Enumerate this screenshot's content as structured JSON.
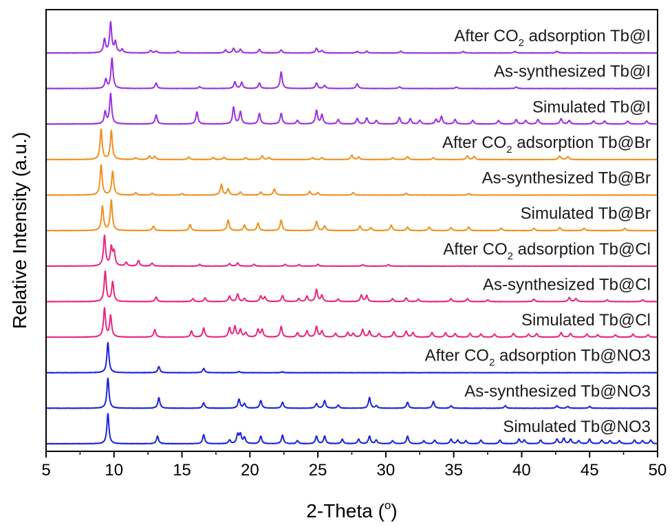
{
  "chart_data": {
    "type": "line",
    "xlabel": "2-Theta (",
    "xlabel_degree": "o",
    "xlabel_close": ")",
    "ylabel": "Relative Intensity (a.u.)",
    "xlim": [
      5,
      50
    ],
    "xticks": [
      5,
      10,
      15,
      20,
      25,
      30,
      35,
      40,
      45,
      50
    ],
    "xtick_labels": [
      "5",
      "10",
      "15",
      "20",
      "25",
      "30",
      "35",
      "40",
      "45",
      "50"
    ],
    "grid": false,
    "legend": "none",
    "series": [
      {
        "name": "After CO2 adsorption Tb@I",
        "label_pre": "After CO",
        "label_sub": "2",
        "label_post": " adsorption Tb@I",
        "color": "#9b2fe0",
        "peaks": [
          [
            9.3,
            0.45
          ],
          [
            9.75,
            1.0
          ],
          [
            10.1,
            0.35
          ],
          [
            10.6,
            0.12
          ],
          [
            12.7,
            0.08
          ],
          [
            13.1,
            0.06
          ],
          [
            14.7,
            0.06
          ],
          [
            18.2,
            0.1
          ],
          [
            18.8,
            0.15
          ],
          [
            19.3,
            0.12
          ],
          [
            20.7,
            0.12
          ],
          [
            22.3,
            0.1
          ],
          [
            24.9,
            0.15
          ],
          [
            25.3,
            0.08
          ],
          [
            27.9,
            0.05
          ],
          [
            28.6,
            0.06
          ],
          [
            31.1,
            0.06
          ],
          [
            35.7,
            0.05
          ],
          [
            39.5,
            0.05
          ],
          [
            42.6,
            0.06
          ]
        ]
      },
      {
        "name": "As-synthesized Tb@I",
        "label_pre": "As-synthesized Tb@I",
        "label_sub": "",
        "label_post": "",
        "color": "#9b2fe0",
        "peaks": [
          [
            9.4,
            0.3
          ],
          [
            9.85,
            1.0
          ],
          [
            13.1,
            0.18
          ],
          [
            16.3,
            0.06
          ],
          [
            18.9,
            0.22
          ],
          [
            19.4,
            0.2
          ],
          [
            20.7,
            0.18
          ],
          [
            22.3,
            0.55
          ],
          [
            24.9,
            0.18
          ],
          [
            25.5,
            0.1
          ],
          [
            27.9,
            0.15
          ],
          [
            31.0,
            0.06
          ],
          [
            35.2,
            0.05
          ],
          [
            39.6,
            0.05
          ]
        ]
      },
      {
        "name": "Simulated Tb@I",
        "label_pre": "Simulated Tb@I",
        "label_sub": "",
        "label_post": "",
        "color": "#9b2fe0",
        "peaks": [
          [
            9.35,
            0.4
          ],
          [
            9.75,
            1.0
          ],
          [
            13.1,
            0.3
          ],
          [
            16.1,
            0.4
          ],
          [
            18.8,
            0.55
          ],
          [
            19.3,
            0.4
          ],
          [
            20.7,
            0.35
          ],
          [
            22.3,
            0.35
          ],
          [
            23.5,
            0.12
          ],
          [
            24.9,
            0.45
          ],
          [
            25.3,
            0.3
          ],
          [
            26.5,
            0.15
          ],
          [
            27.9,
            0.18
          ],
          [
            28.6,
            0.2
          ],
          [
            29.3,
            0.12
          ],
          [
            31.0,
            0.22
          ],
          [
            31.8,
            0.18
          ],
          [
            32.5,
            0.12
          ],
          [
            33.7,
            0.15
          ],
          [
            34.1,
            0.25
          ],
          [
            35.1,
            0.15
          ],
          [
            36.4,
            0.12
          ],
          [
            38.3,
            0.12
          ],
          [
            39.6,
            0.15
          ],
          [
            40.3,
            0.12
          ],
          [
            41.2,
            0.15
          ],
          [
            42.9,
            0.18
          ],
          [
            43.5,
            0.12
          ],
          [
            45.3,
            0.1
          ],
          [
            46.1,
            0.1
          ],
          [
            47.8,
            0.1
          ],
          [
            49.2,
            0.1
          ]
        ]
      },
      {
        "name": "After CO2 adsorption Tb@Br",
        "label_pre": "After CO",
        "label_sub": "2",
        "label_post": " adsorption Tb@Br",
        "color": "#f0901e",
        "peaks": [
          [
            9.05,
            1.0
          ],
          [
            9.8,
            0.95
          ],
          [
            11.6,
            0.06
          ],
          [
            12.6,
            0.12
          ],
          [
            13.0,
            0.1
          ],
          [
            15.5,
            0.08
          ],
          [
            17.3,
            0.07
          ],
          [
            18.1,
            0.08
          ],
          [
            19.7,
            0.06
          ],
          [
            20.9,
            0.12
          ],
          [
            21.4,
            0.07
          ],
          [
            24.6,
            0.06
          ],
          [
            25.3,
            0.06
          ],
          [
            27.5,
            0.14
          ],
          [
            28.0,
            0.08
          ],
          [
            30.5,
            0.06
          ],
          [
            31.6,
            0.1
          ],
          [
            33.5,
            0.06
          ],
          [
            36.0,
            0.12
          ],
          [
            36.5,
            0.1
          ],
          [
            42.8,
            0.12
          ],
          [
            43.4,
            0.1
          ]
        ]
      },
      {
        "name": "As-synthesized Tb@Br",
        "label_pre": "As-synthesized Tb@Br",
        "label_sub": "",
        "label_post": "",
        "color": "#f0901e",
        "peaks": [
          [
            9.05,
            1.0
          ],
          [
            9.9,
            0.78
          ],
          [
            11.6,
            0.08
          ],
          [
            12.8,
            0.06
          ],
          [
            15.0,
            0.05
          ],
          [
            17.9,
            0.35
          ],
          [
            18.4,
            0.2
          ],
          [
            19.3,
            0.1
          ],
          [
            20.8,
            0.1
          ],
          [
            21.8,
            0.2
          ],
          [
            24.4,
            0.12
          ],
          [
            25.0,
            0.08
          ],
          [
            27.6,
            0.08
          ],
          [
            31.5,
            0.06
          ],
          [
            36.1,
            0.05
          ]
        ]
      },
      {
        "name": "Simulated Tb@Br",
        "label_pre": "Simulated Tb@Br",
        "label_sub": "",
        "label_post": "",
        "color": "#f0901e",
        "peaks": [
          [
            9.15,
            0.8
          ],
          [
            9.8,
            1.0
          ],
          [
            12.9,
            0.15
          ],
          [
            15.6,
            0.2
          ],
          [
            18.4,
            0.35
          ],
          [
            19.6,
            0.18
          ],
          [
            20.6,
            0.25
          ],
          [
            22.3,
            0.35
          ],
          [
            24.9,
            0.3
          ],
          [
            25.5,
            0.15
          ],
          [
            28.1,
            0.15
          ],
          [
            28.9,
            0.1
          ],
          [
            30.4,
            0.18
          ],
          [
            31.6,
            0.12
          ],
          [
            33.2,
            0.12
          ],
          [
            34.8,
            0.1
          ],
          [
            36.1,
            0.12
          ],
          [
            38.5,
            0.08
          ],
          [
            40.9,
            0.08
          ],
          [
            42.8,
            0.1
          ],
          [
            44.6,
            0.08
          ],
          [
            47.6,
            0.08
          ]
        ]
      },
      {
        "name": "After CO2 adsorption Tb@Cl",
        "label_pre": "After CO",
        "label_sub": "2",
        "label_post": " adsorption Tb@Cl",
        "color": "#e8267f",
        "peaks": [
          [
            9.3,
            1.0
          ],
          [
            9.8,
            0.6
          ],
          [
            10.0,
            0.45
          ],
          [
            10.9,
            0.12
          ],
          [
            11.8,
            0.18
          ],
          [
            12.8,
            0.1
          ],
          [
            16.3,
            0.06
          ],
          [
            18.5,
            0.08
          ],
          [
            19.1,
            0.1
          ],
          [
            20.3,
            0.06
          ],
          [
            22.6,
            0.06
          ],
          [
            23.6,
            0.05
          ],
          [
            25.0,
            0.06
          ],
          [
            28.3,
            0.05
          ],
          [
            30.2,
            0.05
          ]
        ]
      },
      {
        "name": "As-synthesized Tb@Cl",
        "label_pre": "As-synthesized Tb@Cl",
        "label_sub": "",
        "label_post": "",
        "color": "#e8267f",
        "peaks": [
          [
            9.35,
            1.0
          ],
          [
            9.9,
            0.65
          ],
          [
            13.1,
            0.15
          ],
          [
            15.8,
            0.1
          ],
          [
            16.7,
            0.12
          ],
          [
            18.5,
            0.18
          ],
          [
            19.1,
            0.25
          ],
          [
            19.6,
            0.1
          ],
          [
            20.8,
            0.18
          ],
          [
            21.1,
            0.15
          ],
          [
            22.4,
            0.2
          ],
          [
            23.6,
            0.1
          ],
          [
            24.2,
            0.18
          ],
          [
            24.9,
            0.4
          ],
          [
            25.3,
            0.2
          ],
          [
            26.5,
            0.08
          ],
          [
            28.2,
            0.22
          ],
          [
            28.6,
            0.2
          ],
          [
            30.5,
            0.1
          ],
          [
            31.5,
            0.12
          ],
          [
            32.4,
            0.08
          ],
          [
            34.8,
            0.1
          ],
          [
            36.0,
            0.1
          ],
          [
            37.5,
            0.06
          ],
          [
            40.9,
            0.08
          ],
          [
            43.5,
            0.14
          ],
          [
            44.0,
            0.1
          ],
          [
            46.3,
            0.06
          ],
          [
            48.9,
            0.06
          ]
        ]
      },
      {
        "name": "Simulated Tb@Cl",
        "label_pre": "Simulated Tb@Cl",
        "label_sub": "",
        "label_post": "",
        "color": "#e8267f",
        "peaks": [
          [
            9.3,
            0.95
          ],
          [
            9.75,
            0.7
          ],
          [
            13.0,
            0.25
          ],
          [
            15.7,
            0.2
          ],
          [
            16.6,
            0.3
          ],
          [
            18.5,
            0.3
          ],
          [
            18.9,
            0.35
          ],
          [
            19.3,
            0.25
          ],
          [
            19.7,
            0.15
          ],
          [
            20.6,
            0.25
          ],
          [
            20.9,
            0.25
          ],
          [
            22.3,
            0.35
          ],
          [
            23.5,
            0.15
          ],
          [
            24.2,
            0.2
          ],
          [
            24.9,
            0.35
          ],
          [
            25.3,
            0.2
          ],
          [
            26.3,
            0.12
          ],
          [
            27.2,
            0.15
          ],
          [
            27.6,
            0.12
          ],
          [
            28.3,
            0.25
          ],
          [
            28.8,
            0.2
          ],
          [
            29.5,
            0.12
          ],
          [
            30.6,
            0.18
          ],
          [
            31.5,
            0.2
          ],
          [
            32.0,
            0.15
          ],
          [
            33.4,
            0.15
          ],
          [
            34.4,
            0.15
          ],
          [
            35.1,
            0.12
          ],
          [
            36.2,
            0.12
          ],
          [
            37.0,
            0.1
          ],
          [
            38.0,
            0.1
          ],
          [
            39.4,
            0.12
          ],
          [
            40.5,
            0.1
          ],
          [
            41.1,
            0.12
          ],
          [
            42.9,
            0.15
          ],
          [
            43.6,
            0.12
          ],
          [
            44.8,
            0.1
          ],
          [
            45.6,
            0.08
          ],
          [
            46.9,
            0.08
          ],
          [
            48.2,
            0.1
          ],
          [
            49.3,
            0.08
          ]
        ]
      },
      {
        "name": "After CO2 adsorption Tb@NO3",
        "label_pre": "After CO",
        "label_sub": "2",
        "label_post": " adsorption Tb@NO3",
        "color": "#1a22e0",
        "peaks": [
          [
            9.55,
            1.0
          ],
          [
            13.3,
            0.2
          ],
          [
            16.6,
            0.14
          ],
          [
            19.2,
            0.04
          ],
          [
            22.4,
            0.03
          ]
        ]
      },
      {
        "name": "As-synthesized Tb@NO3",
        "label_pre": "As-synthesized Tb@NO3",
        "label_sub": "",
        "label_post": "",
        "color": "#1a22e0",
        "peaks": [
          [
            9.55,
            1.0
          ],
          [
            13.3,
            0.35
          ],
          [
            16.6,
            0.18
          ],
          [
            19.2,
            0.3
          ],
          [
            19.6,
            0.15
          ],
          [
            20.8,
            0.25
          ],
          [
            22.4,
            0.2
          ],
          [
            24.9,
            0.15
          ],
          [
            25.5,
            0.25
          ],
          [
            26.5,
            0.1
          ],
          [
            28.8,
            0.35
          ],
          [
            29.3,
            0.08
          ],
          [
            31.6,
            0.2
          ],
          [
            33.5,
            0.22
          ],
          [
            34.8,
            0.08
          ],
          [
            38.8,
            0.08
          ],
          [
            42.6,
            0.08
          ],
          [
            43.4,
            0.06
          ],
          [
            45.0,
            0.06
          ]
        ]
      },
      {
        "name": "Simulated Tb@NO3",
        "label_pre": "Simulated Tb@NO3",
        "label_sub": "",
        "label_post": "",
        "color": "#1a22e0",
        "peaks": [
          [
            9.55,
            1.0
          ],
          [
            13.2,
            0.25
          ],
          [
            16.6,
            0.3
          ],
          [
            18.5,
            0.12
          ],
          [
            19.1,
            0.3
          ],
          [
            19.3,
            0.3
          ],
          [
            19.6,
            0.2
          ],
          [
            20.8,
            0.25
          ],
          [
            22.4,
            0.28
          ],
          [
            23.5,
            0.1
          ],
          [
            24.9,
            0.25
          ],
          [
            25.5,
            0.25
          ],
          [
            26.8,
            0.15
          ],
          [
            28.0,
            0.15
          ],
          [
            28.8,
            0.25
          ],
          [
            29.3,
            0.12
          ],
          [
            30.5,
            0.1
          ],
          [
            31.6,
            0.25
          ],
          [
            32.8,
            0.1
          ],
          [
            33.6,
            0.12
          ],
          [
            34.8,
            0.15
          ],
          [
            35.3,
            0.12
          ],
          [
            35.9,
            0.1
          ],
          [
            37.0,
            0.12
          ],
          [
            38.4,
            0.12
          ],
          [
            39.8,
            0.15
          ],
          [
            40.2,
            0.12
          ],
          [
            41.4,
            0.12
          ],
          [
            42.6,
            0.15
          ],
          [
            43.1,
            0.18
          ],
          [
            43.6,
            0.15
          ],
          [
            44.2,
            0.1
          ],
          [
            45.0,
            0.15
          ],
          [
            45.9,
            0.12
          ],
          [
            46.5,
            0.1
          ],
          [
            47.2,
            0.1
          ],
          [
            48.3,
            0.12
          ],
          [
            48.9,
            0.1
          ],
          [
            49.5,
            0.12
          ]
        ]
      }
    ]
  }
}
